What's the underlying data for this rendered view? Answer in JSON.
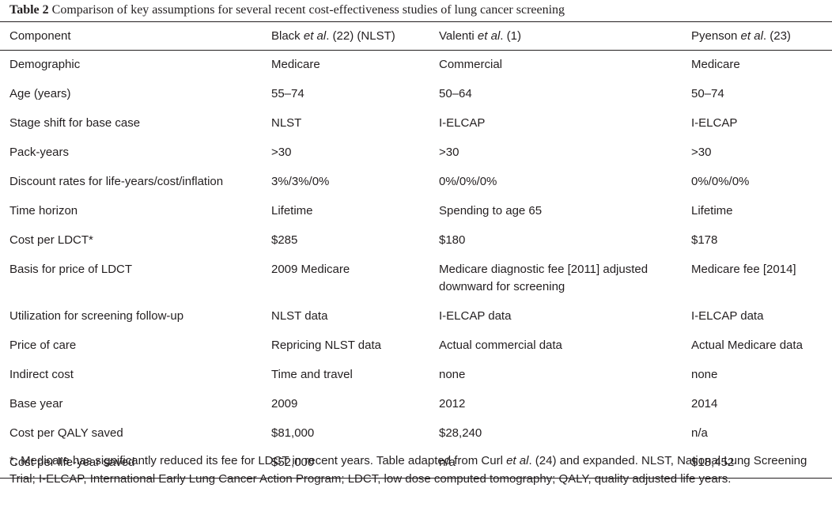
{
  "caption": {
    "label": "Table 2",
    "text": "Comparison of key assumptions for several recent cost-effectiveness studies of lung cancer screening"
  },
  "headers": [
    {
      "pre": "Component",
      "italic": "",
      "post": ""
    },
    {
      "pre": "Black ",
      "italic": "et al",
      "post": ". (22) (NLST)"
    },
    {
      "pre": "Valenti ",
      "italic": "et al",
      "post": ". (1)"
    },
    {
      "pre": "Pyenson ",
      "italic": "et al",
      "post": ". (23)"
    }
  ],
  "rows": [
    [
      "Demographic",
      "Medicare",
      "Commercial",
      "Medicare"
    ],
    [
      "Age (years)",
      "55–74",
      "50–64",
      "50–74"
    ],
    [
      "Stage shift for base case",
      "NLST",
      "I-ELCAP",
      "I-ELCAP"
    ],
    [
      "Pack-years",
      ">30",
      ">30",
      ">30"
    ],
    [
      "Discount rates for life-years/cost/inflation",
      "3%/3%/0%",
      "0%/0%/0%",
      "0%/0%/0%"
    ],
    [
      "Time horizon",
      "Lifetime",
      "Spending to age 65",
      "Lifetime"
    ],
    [
      "Cost per LDCT*",
      "$285",
      "$180",
      "$178"
    ],
    [
      "Basis for price of LDCT",
      "2009 Medicare",
      "Medicare diagnostic fee [2011] adjusted downward for screening",
      "Medicare fee [2014]"
    ],
    [
      "Utilization for screening follow-up",
      "NLST data",
      "I-ELCAP data",
      "I-ELCAP data"
    ],
    [
      "Price of care",
      "Repricing NLST data",
      "Actual commercial data",
      "Actual Medicare data"
    ],
    [
      "Indirect cost",
      "Time and travel",
      "none",
      "none"
    ],
    [
      "Base year",
      "2009",
      "2012",
      "2014"
    ],
    [
      "Cost per QALY saved",
      "$81,000",
      "$28,240",
      "n/a"
    ],
    [
      "Cost per life-year saved",
      "$52,000",
      "n/a",
      "$18,452"
    ]
  ],
  "footnote": {
    "pre": "*, Medicare has significantly reduced its fee for LDCT in recent years. Table adapted from Curl ",
    "italic": "et al",
    "post": ". (24) and expanded. NLST, National Lung Screening Trial; I-ELCAP, International Early Lung Cancer Action Program; LDCT, low dose computed tomography; QALY, quality adjusted life years."
  }
}
